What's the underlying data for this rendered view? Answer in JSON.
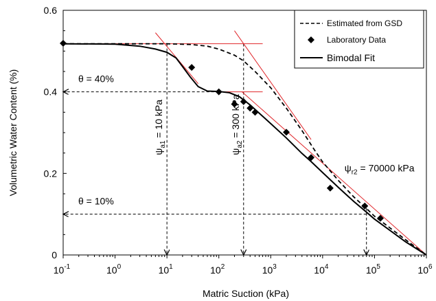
{
  "chart_data": {
    "type": "line",
    "xlabel": "Matric Suction (kPa)",
    "ylabel": "Volumetric Water Content (%)",
    "xscale": "log",
    "xlim": [
      0.1,
      1000000
    ],
    "ylim": [
      0,
      0.6
    ],
    "x_ticks": [
      {
        "base": "10",
        "exp": "-1"
      },
      {
        "base": "10",
        "exp": "0"
      },
      {
        "base": "10",
        "exp": "1"
      },
      {
        "base": "10",
        "exp": "2"
      },
      {
        "base": "10",
        "exp": "3"
      },
      {
        "base": "10",
        "exp": "4"
      },
      {
        "base": "10",
        "exp": "5"
      },
      {
        "base": "10",
        "exp": "6"
      }
    ],
    "y_ticks": [
      "0",
      "0.2",
      "0.4",
      "0.6"
    ],
    "y_tick_values": [
      0,
      0.2,
      0.4,
      0.6
    ],
    "legend": {
      "position": "top-right",
      "entries": [
        "Estimated from GSD",
        "Laboratory Data",
        "Bimodal Fit"
      ]
    },
    "colors": {
      "fit": "#000000",
      "tangent": "#e0262a",
      "guide": "#000000"
    },
    "series": [
      {
        "name": "Laboratory Data",
        "style": "marker",
        "points": [
          [
            0.1,
            0.519
          ],
          [
            30,
            0.46
          ],
          [
            100,
            0.4
          ],
          [
            200,
            0.37
          ],
          [
            300,
            0.376
          ],
          [
            400,
            0.36
          ],
          [
            500,
            0.35
          ],
          [
            2000,
            0.301
          ],
          [
            6000,
            0.239
          ],
          [
            14000,
            0.164
          ],
          [
            65000,
            0.12
          ],
          [
            130000,
            0.09
          ]
        ]
      },
      {
        "name": "Bimodal Fit",
        "style": "solid",
        "points": [
          [
            0.1,
            0.518
          ],
          [
            1,
            0.517
          ],
          [
            3,
            0.512
          ],
          [
            6,
            0.505
          ],
          [
            10,
            0.497
          ],
          [
            15,
            0.483
          ],
          [
            20,
            0.462
          ],
          [
            28,
            0.437
          ],
          [
            40,
            0.413
          ],
          [
            60,
            0.402
          ],
          [
            100,
            0.401
          ],
          [
            160,
            0.398
          ],
          [
            250,
            0.388
          ],
          [
            400,
            0.368
          ],
          [
            700,
            0.34
          ],
          [
            1000,
            0.322
          ],
          [
            2000,
            0.287
          ],
          [
            4000,
            0.249
          ],
          [
            6000,
            0.229
          ],
          [
            10000,
            0.202
          ],
          [
            20000,
            0.166
          ],
          [
            40000,
            0.131
          ],
          [
            70000,
            0.105
          ],
          [
            100000,
            0.088
          ],
          [
            200000,
            0.06
          ],
          [
            400000,
            0.032
          ],
          [
            1000000,
            0.0
          ]
        ]
      },
      {
        "name": "Estimated from GSD",
        "style": "dashed",
        "points": [
          [
            0.1,
            0.518
          ],
          [
            1,
            0.518
          ],
          [
            10,
            0.518
          ],
          [
            30,
            0.516
          ],
          [
            60,
            0.512
          ],
          [
            100,
            0.505
          ],
          [
            200,
            0.49
          ],
          [
            300,
            0.476
          ],
          [
            500,
            0.45
          ],
          [
            1000,
            0.41
          ],
          [
            2000,
            0.36
          ],
          [
            4000,
            0.305
          ],
          [
            7000,
            0.257
          ],
          [
            10000,
            0.228
          ],
          [
            20000,
            0.183
          ],
          [
            40000,
            0.142
          ],
          [
            70000,
            0.114
          ],
          [
            100000,
            0.095
          ],
          [
            200000,
            0.066
          ],
          [
            400000,
            0.037
          ],
          [
            1000000,
            0.0
          ]
        ]
      }
    ],
    "tangent_lines": [
      {
        "points": [
          [
            0.1,
            0.518
          ],
          [
            700,
            0.518
          ]
        ]
      },
      {
        "points": [
          [
            6,
            0.545
          ],
          [
            40,
            0.42
          ]
        ]
      },
      {
        "points": [
          [
            110,
            0.4
          ],
          [
            700,
            0.4
          ]
        ]
      },
      {
        "points": [
          [
            280,
            0.4
          ],
          [
            1000000,
            0.0
          ]
        ]
      },
      {
        "points": [
          [
            200,
            0.55
          ],
          [
            6000,
            0.283
          ]
        ]
      }
    ],
    "annotations": [
      {
        "id": "pct40",
        "text": "40%",
        "y": 0.4
      },
      {
        "id": "pct10",
        "text": "10%",
        "y": 0.1
      },
      {
        "id": "a1",
        "prefix": "ψ",
        "sub": "a1",
        "value": "= 10 kPa",
        "x": 10
      },
      {
        "id": "a2",
        "prefix": "ψ",
        "sub": "a2",
        "value": "= 300 kPa",
        "x": 300
      },
      {
        "id": "r2",
        "prefix": "ψ",
        "sub": "r2",
        "value": "= 70000 kPa",
        "x": 70000
      }
    ]
  }
}
